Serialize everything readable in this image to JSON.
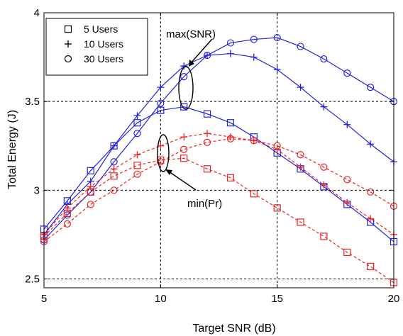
{
  "chart_data": {
    "type": "line",
    "title": "",
    "xlabel": "Target SNR (dB)",
    "ylabel": "Total Energy (J)",
    "xlim": [
      5,
      20
    ],
    "ylim": [
      2.45,
      4
    ],
    "xticks": [
      5,
      10,
      15,
      20
    ],
    "yticks": [
      2.5,
      3,
      3.5,
      4
    ],
    "ytick_labels": [
      "2.5",
      "3",
      "3.5",
      "4"
    ],
    "grid": true,
    "legend_position": "top-left",
    "legend": [
      {
        "label": "5 Users",
        "marker": "square"
      },
      {
        "label": "10 Users",
        "marker": "plus"
      },
      {
        "label": "30 Users",
        "marker": "circle"
      }
    ],
    "x": [
      5,
      6,
      7,
      8,
      9,
      10,
      11,
      12,
      13,
      14,
      15,
      16,
      17,
      18,
      19,
      20
    ],
    "series": [
      {
        "group": "max(SNR)",
        "marker": "square",
        "color": "#2222dd",
        "dash": "solid",
        "values": [
          2.78,
          2.94,
          3.11,
          3.25,
          3.38,
          3.45,
          3.47,
          3.43,
          3.38,
          3.3,
          3.21,
          3.12,
          3.02,
          2.92,
          2.82,
          2.71
        ]
      },
      {
        "group": "max(SNR)",
        "marker": "plus",
        "color": "#2222dd",
        "dash": "solid",
        "values": [
          2.75,
          2.92,
          3.05,
          3.25,
          3.42,
          3.58,
          3.7,
          3.76,
          3.77,
          3.75,
          3.68,
          3.58,
          3.47,
          3.37,
          3.26,
          3.16
        ]
      },
      {
        "group": "max(SNR)",
        "marker": "circle",
        "color": "#2222dd",
        "dash": "solid",
        "values": [
          2.72,
          2.86,
          2.99,
          3.16,
          3.32,
          3.49,
          3.64,
          3.76,
          3.83,
          3.85,
          3.86,
          3.81,
          3.74,
          3.66,
          3.58,
          3.5
        ]
      },
      {
        "group": "min(Pr)",
        "marker": "square",
        "color": "#ee2222",
        "dash": "dashed",
        "values": [
          2.74,
          2.87,
          2.99,
          3.08,
          3.14,
          3.17,
          3.18,
          3.12,
          3.07,
          2.98,
          2.9,
          2.82,
          2.74,
          2.65,
          2.57,
          2.48
        ]
      },
      {
        "group": "min(Pr)",
        "marker": "plus",
        "color": "#ee2222",
        "dash": "dashed",
        "values": [
          2.75,
          2.9,
          3.02,
          3.12,
          3.2,
          3.25,
          3.3,
          3.32,
          3.3,
          3.28,
          3.23,
          3.13,
          3.03,
          2.93,
          2.84,
          2.75
        ]
      },
      {
        "group": "min(Pr)",
        "marker": "circle",
        "color": "#ee2222",
        "dash": "dashed",
        "values": [
          2.71,
          2.81,
          2.92,
          3.0,
          3.09,
          3.16,
          3.23,
          3.27,
          3.29,
          3.28,
          3.25,
          3.2,
          3.13,
          3.06,
          2.99,
          2.91
        ]
      }
    ],
    "annotations": [
      {
        "text": "max(SNR)",
        "target": "max(SNR)"
      },
      {
        "text": "min(Pr)",
        "target": "min(Pr)"
      }
    ]
  }
}
